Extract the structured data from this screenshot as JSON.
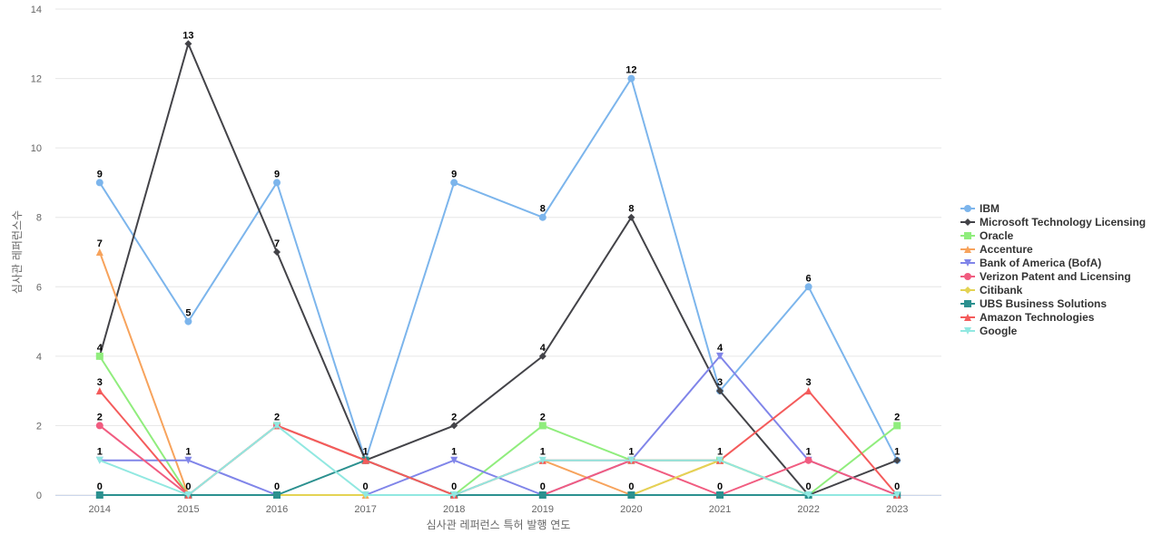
{
  "chart_data": {
    "type": "line",
    "title": "",
    "xlabel": "심사관 레퍼런스 특허 발행 연도",
    "ylabel": "심사관 레퍼런스수",
    "x": [
      "2014",
      "2015",
      "2016",
      "2017",
      "2018",
      "2019",
      "2020",
      "2021",
      "2022",
      "2023"
    ],
    "ylim": [
      0,
      14
    ],
    "yticks": [
      0,
      2,
      4,
      6,
      8,
      10,
      12,
      14
    ],
    "grid": true,
    "legend_position": "right",
    "series": [
      {
        "name": "IBM",
        "color": "#7cb5ec",
        "marker": "circle",
        "values": [
          9,
          5,
          9,
          1,
          9,
          8,
          12,
          3,
          6,
          1
        ]
      },
      {
        "name": "Microsoft Technology Licensing",
        "color": "#434348",
        "marker": "diamond",
        "values": [
          4,
          13,
          7,
          1,
          2,
          4,
          8,
          3,
          0,
          1
        ]
      },
      {
        "name": "Oracle",
        "color": "#90ed7d",
        "marker": "square",
        "values": [
          4,
          0,
          2,
          1,
          0,
          2,
          1,
          1,
          0,
          2
        ]
      },
      {
        "name": "Accenture",
        "color": "#f7a35c",
        "marker": "triangle",
        "values": [
          7,
          0,
          0,
          0,
          0,
          1,
          0,
          1,
          0,
          0
        ]
      },
      {
        "name": "Bank of America (BofA)",
        "color": "#8085e9",
        "marker": "triangle-down",
        "values": [
          1,
          1,
          0,
          0,
          1,
          0,
          1,
          4,
          1,
          0
        ]
      },
      {
        "name": "Verizon Patent and Licensing",
        "color": "#f15c80",
        "marker": "circle",
        "values": [
          2,
          0,
          2,
          1,
          0,
          0,
          1,
          0,
          1,
          0
        ]
      },
      {
        "name": "Citibank",
        "color": "#e4d354",
        "marker": "diamond",
        "values": [
          0,
          0,
          0,
          0,
          0,
          0,
          0,
          1,
          0,
          0
        ]
      },
      {
        "name": "UBS Business Solutions",
        "color": "#2b908f",
        "marker": "square",
        "values": [
          0,
          0,
          0,
          1,
          0,
          0,
          0,
          0,
          0,
          0
        ]
      },
      {
        "name": "Amazon Technologies",
        "color": "#f45b5b",
        "marker": "triangle",
        "values": [
          3,
          0,
          2,
          1,
          0,
          1,
          1,
          1,
          3,
          0
        ]
      },
      {
        "name": "Google",
        "color": "#91e8e1",
        "marker": "triangle-down",
        "values": [
          1,
          0,
          2,
          0,
          0,
          1,
          1,
          1,
          0,
          0
        ]
      }
    ],
    "data_labels": [
      {
        "x": "2014",
        "values": [
          "9",
          "7",
          "4",
          "3",
          "2",
          "1",
          "0"
        ]
      },
      {
        "x": "2015",
        "values": [
          "13",
          "5",
          "1",
          "0"
        ]
      },
      {
        "x": "2016",
        "values": [
          "9",
          "7",
          "2",
          "0"
        ]
      },
      {
        "x": "2017",
        "values": [
          "1",
          "0"
        ]
      },
      {
        "x": "2018",
        "values": [
          "9",
          "2",
          "1",
          "0"
        ]
      },
      {
        "x": "2019",
        "values": [
          "8",
          "4",
          "2",
          "1",
          "0"
        ]
      },
      {
        "x": "2020",
        "values": [
          "12",
          "8",
          "1",
          "0"
        ]
      },
      {
        "x": "2021",
        "values": [
          "4",
          "3",
          "1",
          "0"
        ]
      },
      {
        "x": "2022",
        "values": [
          "6",
          "3",
          "1",
          "0"
        ]
      },
      {
        "x": "2023",
        "values": [
          "2",
          "1",
          "0"
        ]
      }
    ]
  }
}
